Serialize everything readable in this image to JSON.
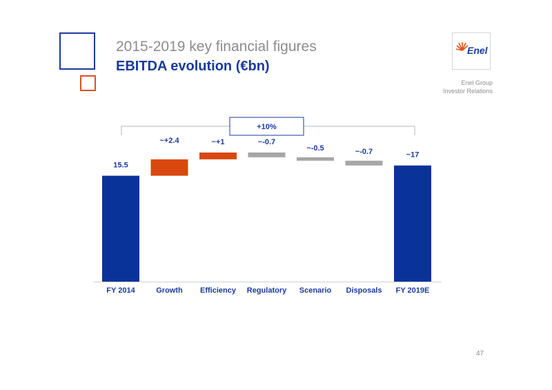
{
  "header": {
    "subtitle": "2015-2019 key financial figures",
    "title": "EBITDA evolution (€bn)",
    "logo_text": "Enel",
    "group_line1": "Enel Group",
    "group_line2": "Investor Relations"
  },
  "page_number": "47",
  "colors": {
    "blue": "#0a3399",
    "orange": "#d9480f",
    "gray": "#a6a6a6",
    "bracket": "#b5b5b5",
    "badge_border": "#1a3a9c"
  },
  "chart_data": {
    "type": "bar",
    "subtype": "waterfall",
    "categories": [
      "FY 2014",
      "Growth",
      "Efficiency",
      "Regulatory",
      "Scenario",
      "Disposals",
      "FY 2019E"
    ],
    "values": [
      15.5,
      2.4,
      1,
      -0.7,
      -0.5,
      -0.7,
      17
    ],
    "labels": [
      "15.5",
      "~+2.4",
      "~+1",
      "~-0.7",
      "~-0.5",
      "~-0.7",
      "~17"
    ],
    "bar_kinds": [
      "total",
      "increase",
      "increase",
      "decrease",
      "decrease",
      "decrease",
      "total"
    ],
    "annotation": "+10%",
    "ylim": [
      0,
      19.5
    ],
    "grid": false,
    "title": "",
    "xlabel": "",
    "ylabel": ""
  }
}
